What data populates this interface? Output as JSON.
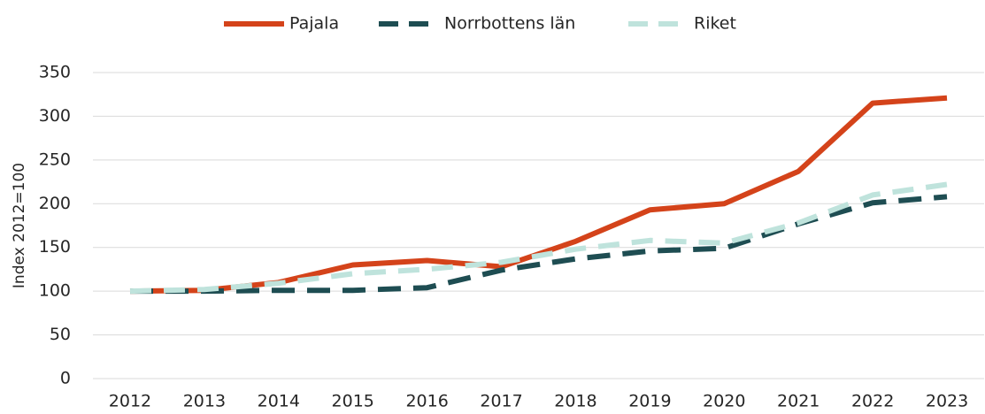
{
  "chart_data": {
    "type": "line",
    "y_label": "Index 2012=100",
    "categories": [
      "2012",
      "2013",
      "2014",
      "2015",
      "2016",
      "2017",
      "2018",
      "2019",
      "2020",
      "2021",
      "2022",
      "2023"
    ],
    "series": [
      {
        "name": "Pajala",
        "color": "#d4431a",
        "dash": "none",
        "values": [
          100,
          101,
          110,
          130,
          135,
          128,
          157,
          193,
          200,
          237,
          315,
          321
        ]
      },
      {
        "name": "Norrbottens län",
        "color": "#1e4d52",
        "dash": "26 14",
        "values": [
          100,
          100,
          101,
          101,
          104,
          124,
          137,
          146,
          149,
          177,
          201,
          208
        ]
      },
      {
        "name": "Riket",
        "color": "#bfe3dc",
        "dash": "24 14",
        "values": [
          100,
          102,
          109,
          120,
          125,
          133,
          148,
          158,
          155,
          178,
          210,
          222
        ]
      }
    ],
    "ylim": [
      0,
      350
    ],
    "yticks": [
      0,
      50,
      100,
      150,
      200,
      250,
      300,
      350
    ],
    "grid": true,
    "legend": "top"
  }
}
